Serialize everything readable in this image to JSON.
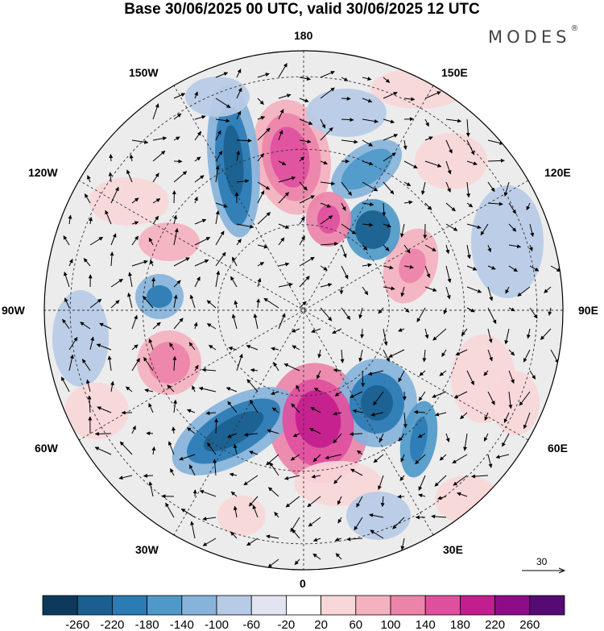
{
  "title": "Base 30/06/2025 00 UTC, valid 30/06/2025 12 UTC",
  "brand": "MODES",
  "brand_mark": "®",
  "longitude_labels": {
    "top": "180",
    "bottom": "0",
    "left": "90W",
    "right": "90E",
    "upper_left_a": "150W",
    "upper_left_b": "120W",
    "upper_right_a": "150E",
    "upper_right_b": "120E",
    "lower_left_a": "60W",
    "lower_left_b": "30W",
    "lower_right_a": "60E",
    "lower_right_b": "30E"
  },
  "reference_vector": {
    "value": "30"
  },
  "colorbar": {
    "tick_labels": [
      "-260",
      "-220",
      "-180",
      "-140",
      "-100",
      "-60",
      "-20",
      "20",
      "60",
      "100",
      "140",
      "180",
      "220",
      "260"
    ],
    "colors": [
      "#0d3a5c",
      "#1a5f8f",
      "#2b7bb5",
      "#4f99c9",
      "#86b3da",
      "#b7cbe6",
      "#e2e4f1",
      "#ffffff",
      "#f8d7d8",
      "#f4b1bf",
      "#ec84aa",
      "#df4f9e",
      "#c21e8d",
      "#8e0c88",
      "#560a73"
    ]
  }
}
